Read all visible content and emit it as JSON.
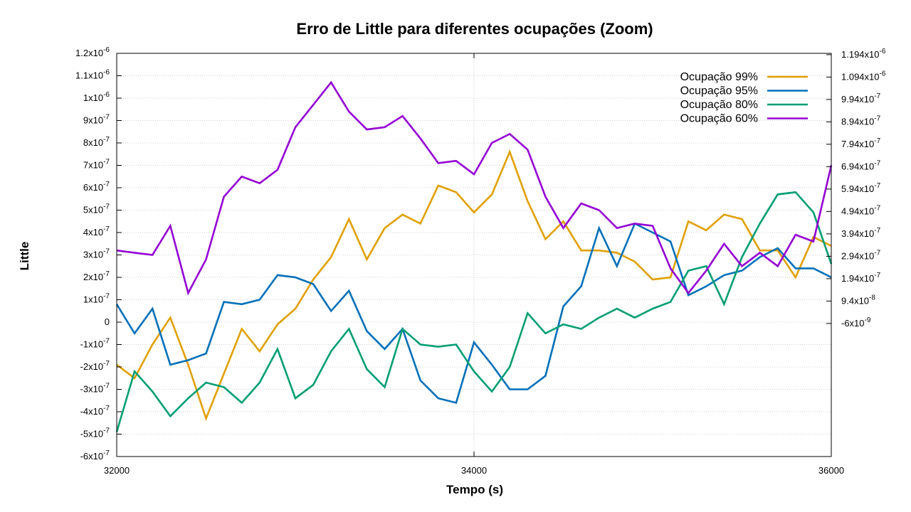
{
  "chart_data": {
    "type": "line",
    "title": "Erro de Little para diferentes ocupações (Zoom)",
    "xlabel": "Tempo (s)",
    "ylabel": "Little",
    "xlim": [
      32000,
      36000
    ],
    "ylim": [
      -6e-07,
      1.2e-06
    ],
    "grid": true,
    "legend_position": "top-right",
    "x_ticks": [
      {
        "value": 32000,
        "label": "32000"
      },
      {
        "value": 34000,
        "label": "34000"
      },
      {
        "value": 36000,
        "label": "36000"
      }
    ],
    "y_ticks_left": [
      {
        "value": 1.2e-06,
        "mant": "1.2x10",
        "exp": "-6"
      },
      {
        "value": 1.1e-06,
        "mant": "1.1x10",
        "exp": "-6"
      },
      {
        "value": 1e-06,
        "mant": "1x10",
        "exp": "-6"
      },
      {
        "value": 9e-07,
        "mant": "9x10",
        "exp": "-7"
      },
      {
        "value": 8e-07,
        "mant": "8x10",
        "exp": "-7"
      },
      {
        "value": 7e-07,
        "mant": "7x10",
        "exp": "-7"
      },
      {
        "value": 6e-07,
        "mant": "6x10",
        "exp": "-7"
      },
      {
        "value": 5e-07,
        "mant": "5x10",
        "exp": "-7"
      },
      {
        "value": 4e-07,
        "mant": "4x10",
        "exp": "-7"
      },
      {
        "value": 3e-07,
        "mant": "3x10",
        "exp": "-7"
      },
      {
        "value": 2e-07,
        "mant": "2x10",
        "exp": "-7"
      },
      {
        "value": 1e-07,
        "mant": "1x10",
        "exp": "-7"
      },
      {
        "value": 0,
        "mant": "0",
        "exp": ""
      },
      {
        "value": -1e-07,
        "mant": "-1x10",
        "exp": "-7"
      },
      {
        "value": -2e-07,
        "mant": "-2x10",
        "exp": "-7"
      },
      {
        "value": -3e-07,
        "mant": "-3x10",
        "exp": "-7"
      },
      {
        "value": -4e-07,
        "mant": "-4x10",
        "exp": "-7"
      },
      {
        "value": -5e-07,
        "mant": "-5x10",
        "exp": "-7"
      },
      {
        "value": -6e-07,
        "mant": "-6x10",
        "exp": "-7"
      }
    ],
    "y_ticks_right": [
      {
        "value": 1.194e-06,
        "mant": "1.194x10",
        "exp": "-6"
      },
      {
        "value": 1.094e-06,
        "mant": "1.094x10",
        "exp": "-6"
      },
      {
        "value": 9.94e-07,
        "mant": "9.94x10",
        "exp": "-7"
      },
      {
        "value": 8.94e-07,
        "mant": "8.94x10",
        "exp": "-7"
      },
      {
        "value": 7.94e-07,
        "mant": "7.94x10",
        "exp": "-7"
      },
      {
        "value": 6.94e-07,
        "mant": "6.94x10",
        "exp": "-7"
      },
      {
        "value": 5.94e-07,
        "mant": "5.94x10",
        "exp": "-7"
      },
      {
        "value": 4.94e-07,
        "mant": "4.94x10",
        "exp": "-7"
      },
      {
        "value": 3.94e-07,
        "mant": "3.94x10",
        "exp": "-7"
      },
      {
        "value": 2.94e-07,
        "mant": "2.94x10",
        "exp": "-7"
      },
      {
        "value": 1.94e-07,
        "mant": "1.94x10",
        "exp": "-7"
      },
      {
        "value": 9.4e-08,
        "mant": "9.4x10",
        "exp": "-8"
      },
      {
        "value": -6e-09,
        "mant": "-6x10",
        "exp": "-9"
      }
    ],
    "x": [
      32000,
      32100,
      32200,
      32300,
      32400,
      32500,
      32600,
      32700,
      32800,
      32900,
      33000,
      33100,
      33200,
      33300,
      33400,
      33500,
      33600,
      33700,
      33800,
      33900,
      34000,
      34100,
      34200,
      34300,
      34400,
      34500,
      34600,
      34700,
      34800,
      34900,
      35000,
      35100,
      35200,
      35300,
      35400,
      35500,
      35600,
      35700,
      35800,
      35900,
      36000
    ],
    "series": [
      {
        "name": "Ocupação 99%",
        "color": "#e0a000",
        "values": [
          -1.9e-07,
          -2.5e-07,
          -1e-07,
          2e-08,
          -1.9e-07,
          -4.3e-07,
          -2.3e-07,
          -3e-08,
          -1.3e-07,
          -1e-08,
          6e-08,
          1.9e-07,
          2.9e-07,
          4.6e-07,
          2.8e-07,
          4.2e-07,
          4.8e-07,
          4.4e-07,
          6.1e-07,
          5.8e-07,
          4.9e-07,
          5.7e-07,
          7.6e-07,
          5.4e-07,
          3.7e-07,
          4.5e-07,
          3.2e-07,
          3.2e-07,
          3.1e-07,
          2.7e-07,
          1.9e-07,
          2e-07,
          4.5e-07,
          4.1e-07,
          4.8e-07,
          4.6e-07,
          3.2e-07,
          3.2e-07,
          2e-07,
          3.8e-07,
          3.4e-07
        ]
      },
      {
        "name": "Ocupação 95%",
        "color": "#0070b8",
        "values": [
          8e-08,
          -5e-08,
          6e-08,
          -1.9e-07,
          -1.7e-07,
          -1.4e-07,
          9e-08,
          8e-08,
          1e-07,
          2.1e-07,
          2e-07,
          1.7e-07,
          5e-08,
          1.4e-07,
          -4e-08,
          -1.2e-07,
          -3e-08,
          -2.6e-07,
          -3.4e-07,
          -3.6e-07,
          -9e-08,
          -1.9e-07,
          -3e-07,
          -3e-07,
          -2.4e-07,
          7e-08,
          1.6e-07,
          4.2e-07,
          2.5e-07,
          4.4e-07,
          4e-07,
          3.6e-07,
          1.2e-07,
          1.6e-07,
          2.1e-07,
          2.3e-07,
          2.9e-07,
          3.3e-07,
          2.4e-07,
          2.4e-07,
          2e-07
        ]
      },
      {
        "name": "Ocupação 80%",
        "color": "#009e73",
        "values": [
          -4.9e-07,
          -2.2e-07,
          -3.1e-07,
          -4.2e-07,
          -3.4e-07,
          -2.7e-07,
          -2.9e-07,
          -3.6e-07,
          -2.7e-07,
          -1.2e-07,
          -3.4e-07,
          -2.8e-07,
          -1.3e-07,
          -3e-08,
          -2.1e-07,
          -2.9e-07,
          -3e-08,
          -1e-07,
          -1.1e-07,
          -1e-07,
          -2.2e-07,
          -3.1e-07,
          -2e-07,
          4e-08,
          -5e-08,
          -1e-08,
          -3e-08,
          2e-08,
          6e-08,
          2e-08,
          6e-08,
          9e-08,
          2.3e-07,
          2.5e-07,
          8e-08,
          2.9e-07,
          4.4e-07,
          5.7e-07,
          5.8e-07,
          4.9e-07,
          2.6e-07
        ]
      },
      {
        "name": "Ocupação 60%",
        "color": "#9400d3",
        "values": [
          3.2e-07,
          3.1e-07,
          3e-07,
          4.3e-07,
          1.3e-07,
          2.8e-07,
          5.6e-07,
          6.5e-07,
          6.2e-07,
          6.8e-07,
          8.7e-07,
          9.7e-07,
          1.07e-06,
          9.4e-07,
          8.6e-07,
          8.7e-07,
          9.2e-07,
          8.2e-07,
          7.1e-07,
          7.2e-07,
          6.6e-07,
          8e-07,
          8.4e-07,
          7.7e-07,
          5.6e-07,
          4.2e-07,
          5.3e-07,
          5e-07,
          4.2e-07,
          4.4e-07,
          4.3e-07,
          2.4e-07,
          1.3e-07,
          2.3e-07,
          3.5e-07,
          2.5e-07,
          3.1e-07,
          2.5e-07,
          3.9e-07,
          3.6e-07,
          7e-07
        ]
      }
    ]
  }
}
